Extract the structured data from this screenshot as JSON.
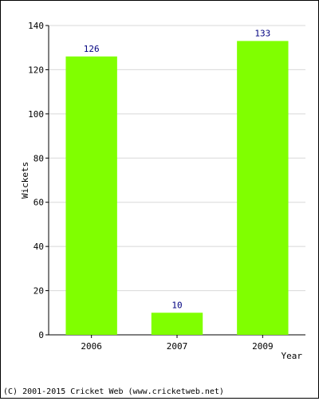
{
  "chart_data": {
    "type": "bar",
    "categories": [
      "2006",
      "2007",
      "2009"
    ],
    "values": [
      126,
      10,
      133
    ],
    "data_labels": [
      "126",
      "10",
      "133"
    ],
    "xlabel": "Year",
    "ylabel": "Wickets",
    "ylim": [
      0,
      140
    ],
    "yticks": [
      0,
      20,
      40,
      60,
      80,
      100,
      120,
      140
    ],
    "grid": "horizontal",
    "bar_color": "#80ff00",
    "label_color": "#000080"
  },
  "footer": {
    "copyright": "(C) 2001-2015 Cricket Web (www.cricketweb.net)"
  }
}
